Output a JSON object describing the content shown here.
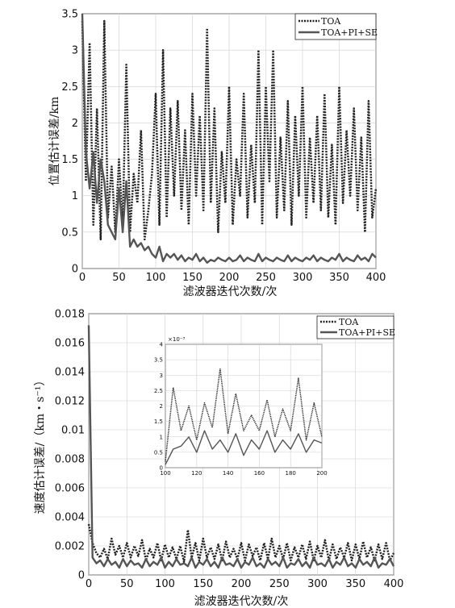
{
  "chart_data": [
    {
      "type": "line",
      "title": "",
      "xlabel": "滤波器迭代次数/次",
      "ylabel": "位置估计误差/km",
      "xlim": [
        0,
        400
      ],
      "ylim": [
        0,
        3.5
      ],
      "grid": true,
      "legend_position": "top-right",
      "x_ticks": [
        "0",
        "50",
        "100",
        "150",
        "200",
        "250",
        "300",
        "350",
        "400"
      ],
      "y_ticks": [
        "0",
        "0.5",
        "1",
        "1.5",
        "2",
        "2.5",
        "3",
        "3.5"
      ],
      "x": [
        0,
        5,
        10,
        15,
        20,
        25,
        30,
        35,
        40,
        45,
        50,
        55,
        60,
        65,
        70,
        75,
        80,
        85,
        90,
        95,
        100,
        105,
        110,
        115,
        120,
        125,
        130,
        135,
        140,
        145,
        150,
        155,
        160,
        165,
        170,
        175,
        180,
        185,
        190,
        195,
        200,
        205,
        210,
        215,
        220,
        225,
        230,
        235,
        240,
        245,
        250,
        255,
        260,
        265,
        270,
        275,
        280,
        285,
        290,
        295,
        300,
        305,
        310,
        315,
        320,
        325,
        330,
        335,
        340,
        345,
        350,
        355,
        360,
        365,
        370,
        375,
        380,
        385,
        390,
        395,
        400
      ],
      "series": [
        {
          "name": "TOA",
          "style": "dotted",
          "color": "#222222",
          "values": [
            3.4,
            1.2,
            3.1,
            0.6,
            2.2,
            0.4,
            3.4,
            0.7,
            1.4,
            0.5,
            1.5,
            0.6,
            2.8,
            0.5,
            1.3,
            0.9,
            1.9,
            0.4,
            0.8,
            1.3,
            2.4,
            0.6,
            3.0,
            0.7,
            2.2,
            1.0,
            2.3,
            0.8,
            1.9,
            0.6,
            2.4,
            1.0,
            2.1,
            0.8,
            3.3,
            0.9,
            2.2,
            0.5,
            1.6,
            0.9,
            2.5,
            0.6,
            1.5,
            1.0,
            2.4,
            0.7,
            1.7,
            0.9,
            3.0,
            0.6,
            2.5,
            1.2,
            3.0,
            0.7,
            1.8,
            0.8,
            2.3,
            0.6,
            2.1,
            1.0,
            2.5,
            0.7,
            1.8,
            0.9,
            2.1,
            0.8,
            2.4,
            0.7,
            1.7,
            0.6,
            2.5,
            0.9,
            1.9,
            1.0,
            2.2,
            0.8,
            1.8,
            0.5,
            2.3,
            0.7,
            1.1
          ]
        },
        {
          "name": "TOA+PI+SE",
          "style": "solid",
          "color": "#555555",
          "values": [
            3.5,
            1.6,
            1.1,
            1.6,
            0.9,
            1.5,
            1.2,
            0.6,
            0.5,
            0.4,
            1.1,
            0.5,
            1.2,
            0.3,
            0.4,
            0.3,
            0.35,
            0.25,
            0.3,
            0.2,
            0.15,
            0.3,
            0.1,
            0.2,
            0.15,
            0.2,
            0.12,
            0.18,
            0.1,
            0.15,
            0.12,
            0.2,
            0.1,
            0.15,
            0.08,
            0.12,
            0.1,
            0.15,
            0.12,
            0.1,
            0.15,
            0.1,
            0.12,
            0.18,
            0.1,
            0.15,
            0.12,
            0.1,
            0.2,
            0.1,
            0.15,
            0.12,
            0.1,
            0.15,
            0.12,
            0.1,
            0.18,
            0.1,
            0.15,
            0.12,
            0.1,
            0.15,
            0.12,
            0.18,
            0.1,
            0.15,
            0.12,
            0.1,
            0.15,
            0.12,
            0.2,
            0.1,
            0.15,
            0.12,
            0.1,
            0.18,
            0.12,
            0.15,
            0.1,
            0.2,
            0.15
          ]
        }
      ]
    },
    {
      "type": "line",
      "title": "",
      "xlabel": "滤波器迭代次数/次",
      "ylabel": "速度估计误差/（km・s⁻¹）",
      "xlim": [
        0,
        400
      ],
      "ylim": [
        0,
        0.018
      ],
      "grid": true,
      "legend_position": "top-right",
      "x_ticks": [
        "0",
        "50",
        "100",
        "150",
        "200",
        "250",
        "300",
        "350",
        "400"
      ],
      "y_ticks": [
        "0",
        "0.002",
        "0.004",
        "0.006",
        "0.008",
        "0.01",
        "0.012",
        "0.014",
        "0.016",
        "0.018"
      ],
      "x": [
        0,
        5,
        10,
        15,
        20,
        25,
        30,
        35,
        40,
        45,
        50,
        55,
        60,
        65,
        70,
        75,
        80,
        85,
        90,
        95,
        100,
        105,
        110,
        115,
        120,
        125,
        130,
        135,
        140,
        145,
        150,
        155,
        160,
        165,
        170,
        175,
        180,
        185,
        190,
        195,
        200,
        205,
        210,
        215,
        220,
        225,
        230,
        235,
        240,
        245,
        250,
        255,
        260,
        265,
        270,
        275,
        280,
        285,
        290,
        295,
        300,
        305,
        310,
        315,
        320,
        325,
        330,
        335,
        340,
        345,
        350,
        355,
        360,
        365,
        370,
        375,
        380,
        385,
        390,
        395,
        400
      ],
      "series": [
        {
          "name": "TOA",
          "style": "dotted",
          "color": "#222222",
          "values": [
            0.0035,
            0.0022,
            0.0015,
            0.0012,
            0.0018,
            0.0011,
            0.0025,
            0.0014,
            0.002,
            0.0012,
            0.0022,
            0.0012,
            0.002,
            0.0013,
            0.0024,
            0.001,
            0.0018,
            0.0012,
            0.0022,
            0.001,
            0.0021,
            0.0012,
            0.0019,
            0.0011,
            0.002,
            0.0009,
            0.0031,
            0.0012,
            0.0022,
            0.001,
            0.0025,
            0.0012,
            0.0019,
            0.0011,
            0.0021,
            0.001,
            0.0023,
            0.0012,
            0.0018,
            0.0011,
            0.0022,
            0.001,
            0.0021,
            0.0013,
            0.0019,
            0.001,
            0.0022,
            0.0011,
            0.0025,
            0.0012,
            0.002,
            0.0011,
            0.0022,
            0.001,
            0.0019,
            0.0012,
            0.0021,
            0.0011,
            0.0023,
            0.001,
            0.002,
            0.0012,
            0.0024,
            0.001,
            0.0021,
            0.0011,
            0.0019,
            0.0012,
            0.0022,
            0.001,
            0.0021,
            0.0011,
            0.0023,
            0.0012,
            0.0019,
            0.001,
            0.0021,
            0.0011,
            0.0022,
            0.001,
            0.0015
          ]
        },
        {
          "name": "TOA+PI+SE",
          "style": "solid",
          "color": "#555555",
          "values": [
            0.0172,
            0.0012,
            0.0008,
            0.001,
            0.0006,
            0.0011,
            0.0007,
            0.0009,
            0.0005,
            0.0011,
            0.0006,
            0.001,
            0.0007,
            0.0008,
            0.0005,
            0.0011,
            0.0006,
            0.0009,
            0.0007,
            0.0012,
            0.0005,
            0.0009,
            0.0006,
            0.0011,
            0.0007,
            0.0008,
            0.0006,
            0.0012,
            0.0005,
            0.0009,
            0.0007,
            0.0011,
            0.0006,
            0.0009,
            0.0005,
            0.0012,
            0.0007,
            0.0008,
            0.0006,
            0.0011,
            0.0005,
            0.0009,
            0.0007,
            0.0012,
            0.0006,
            0.0008,
            0.0005,
            0.0011,
            0.0007,
            0.0009,
            0.0006,
            0.0012,
            0.0005,
            0.0008,
            0.0007,
            0.0011,
            0.0006,
            0.0009,
            0.0005,
            0.0012,
            0.0007,
            0.0008,
            0.0006,
            0.0011,
            0.0005,
            0.0009,
            0.0007,
            0.0012,
            0.0006,
            0.0008,
            0.0005,
            0.0011,
            0.0007,
            0.0009,
            0.0006,
            0.0012,
            0.0005,
            0.0008,
            0.0007,
            0.0011,
            0.0006
          ]
        }
      ],
      "inset": {
        "xlim": [
          100,
          200
        ],
        "ylim": [
          0,
          0.004
        ],
        "y_exponent_label": "×10⁻³",
        "x_ticks": [
          "100",
          "120",
          "140",
          "160",
          "180",
          "200"
        ],
        "y_ticks": [
          "0",
          "0.5",
          "1",
          "1.5",
          "2",
          "2.5",
          "3",
          "3.5",
          "4"
        ],
        "x": [
          100,
          105,
          110,
          115,
          120,
          125,
          130,
          135,
          140,
          145,
          150,
          155,
          160,
          165,
          170,
          175,
          180,
          185,
          190,
          195,
          200
        ],
        "series": [
          {
            "name": "TOA",
            "style": "dotted",
            "color": "#222222",
            "values": [
              0.0002,
              0.0026,
              0.0012,
              0.002,
              0.0009,
              0.0021,
              0.0013,
              0.0032,
              0.0011,
              0.0024,
              0.0012,
              0.0017,
              0.0012,
              0.0022,
              0.001,
              0.0019,
              0.0012,
              0.0029,
              0.0009,
              0.0021,
              0.001
            ]
          },
          {
            "name": "TOA+PI+SE",
            "style": "solid",
            "color": "#555555",
            "values": [
              0.0001,
              0.0006,
              0.0007,
              0.001,
              0.0005,
              0.0012,
              0.0006,
              0.0009,
              0.0005,
              0.0011,
              0.0004,
              0.0009,
              0.0006,
              0.0012,
              0.0005,
              0.0009,
              0.0006,
              0.0011,
              0.0005,
              0.0009,
              0.0008
            ]
          }
        ]
      }
    }
  ]
}
